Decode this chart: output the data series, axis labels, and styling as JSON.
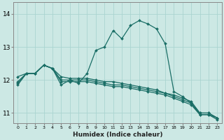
{
  "xlabel": "Humidex (Indice chaleur)",
  "bg_color": "#cce8e4",
  "grid_color": "#aad4d0",
  "line_color": "#1a6e66",
  "xlim": [
    -0.5,
    23.5
  ],
  "ylim": [
    10.7,
    14.35
  ],
  "yticks": [
    11,
    12,
    13,
    14
  ],
  "xticks": [
    0,
    1,
    2,
    3,
    4,
    5,
    6,
    7,
    8,
    9,
    10,
    11,
    12,
    13,
    14,
    15,
    16,
    17,
    18,
    19,
    20,
    21,
    22,
    23
  ],
  "series": [
    {
      "x": [
        0,
        1,
        2,
        3,
        4,
        5,
        6,
        7,
        8,
        9,
        10,
        11,
        12,
        13,
        14,
        15,
        16,
        17,
        18,
        19,
        20,
        21,
        22,
        23
      ],
      "y": [
        11.9,
        12.2,
        12.2,
        12.45,
        12.35,
        11.85,
        12.0,
        11.9,
        12.2,
        12.9,
        13.0,
        13.5,
        13.25,
        13.65,
        13.8,
        13.7,
        13.55,
        13.1,
        11.65,
        11.5,
        11.3,
        11.0,
        11.0,
        10.85
      ]
    },
    {
      "x": [
        0,
        1,
        2,
        3,
        4,
        5,
        6,
        7,
        8,
        9,
        10,
        11,
        12,
        13,
        14,
        15,
        16,
        17,
        18,
        19,
        20,
        21,
        22,
        23
      ],
      "y": [
        12.1,
        12.2,
        12.2,
        12.45,
        12.35,
        12.1,
        12.05,
        12.05,
        12.05,
        12.0,
        11.95,
        11.95,
        11.9,
        11.85,
        11.8,
        11.75,
        11.7,
        11.6,
        11.55,
        11.45,
        11.35,
        11.0,
        11.0,
        10.85
      ]
    },
    {
      "x": [
        0,
        1,
        2,
        3,
        4,
        5,
        6,
        7,
        8,
        9,
        10,
        11,
        12,
        13,
        14,
        15,
        16,
        17,
        18,
        19,
        20,
        21,
        22,
        23
      ],
      "y": [
        11.95,
        12.2,
        12.2,
        12.45,
        12.35,
        12.0,
        12.0,
        12.0,
        12.0,
        11.95,
        11.9,
        11.85,
        11.85,
        11.8,
        11.75,
        11.7,
        11.65,
        11.6,
        11.5,
        11.4,
        11.3,
        10.95,
        10.95,
        10.85
      ]
    },
    {
      "x": [
        0,
        1,
        2,
        3,
        4,
        5,
        6,
        7,
        8,
        9,
        10,
        11,
        12,
        13,
        14,
        15,
        16,
        17,
        18,
        19,
        20,
        21,
        22,
        23
      ],
      "y": [
        11.85,
        12.2,
        12.2,
        12.45,
        12.35,
        11.95,
        11.95,
        11.95,
        11.95,
        11.9,
        11.85,
        11.8,
        11.8,
        11.75,
        11.7,
        11.65,
        11.6,
        11.55,
        11.45,
        11.35,
        11.25,
        10.95,
        10.95,
        10.8
      ]
    }
  ]
}
